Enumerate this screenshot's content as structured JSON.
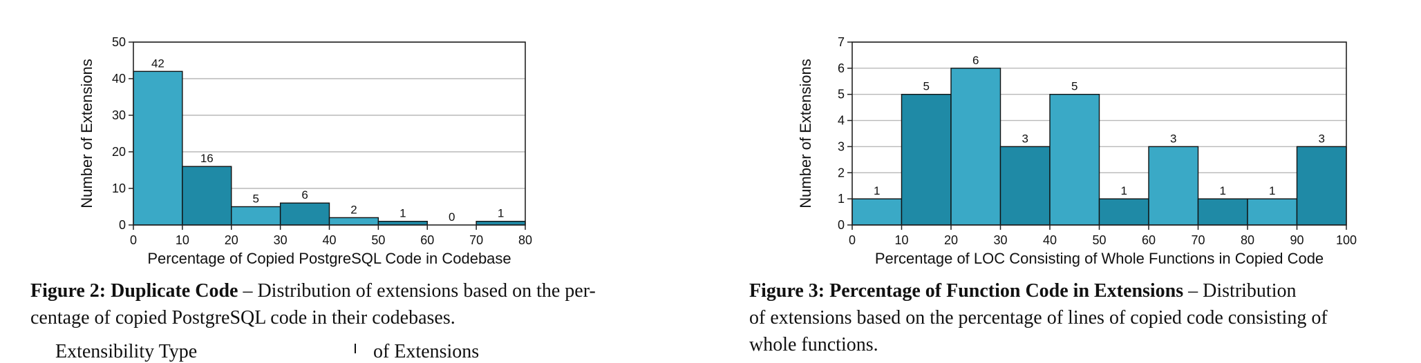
{
  "chart_data": [
    {
      "type": "bar",
      "bin_edges": [
        0,
        10,
        20,
        30,
        40,
        50,
        60,
        70,
        80
      ],
      "values": [
        42,
        16,
        5,
        6,
        2,
        1,
        0,
        1
      ],
      "xticks": [
        "0",
        "10",
        "20",
        "30",
        "40",
        "50",
        "60",
        "70",
        "80"
      ],
      "yticks": [
        "0",
        "10",
        "20",
        "30",
        "40",
        "50"
      ],
      "ylim": [
        0,
        50
      ],
      "xlabel": "Percentage of Copied PostgreSQL Code in Codebase",
      "ylabel": "Number of Extensions",
      "grid": true
    },
    {
      "type": "bar",
      "bin_edges": [
        0,
        10,
        20,
        30,
        40,
        50,
        60,
        70,
        80,
        90,
        100
      ],
      "values": [
        1,
        5,
        6,
        3,
        5,
        1,
        3,
        1,
        1,
        3
      ],
      "xticks": [
        "0",
        "10",
        "20",
        "30",
        "40",
        "50",
        "60",
        "70",
        "80",
        "90",
        "100"
      ],
      "yticks": [
        "0",
        "1",
        "2",
        "3",
        "4",
        "5",
        "6",
        "7"
      ],
      "ylim": [
        0,
        7
      ],
      "xlabel": "Percentage of LOC Consisting of Whole Functions in Copied Code",
      "ylabel": "Number of Extensions",
      "grid": true
    }
  ],
  "colors": {
    "bar_light": "#3aa9c6",
    "bar_dark": "#1f8aa6",
    "grid": "#b8b8b8",
    "axis": "#222222"
  },
  "captions": [
    {
      "figure_label": "Figure 2: Duplicate Code",
      "dash": " – ",
      "lines": [
        "Distribution of extensions based on the per-",
        "centage of copied PostgreSQL code in their codebases."
      ]
    },
    {
      "figure_label": "Figure 3: Percentage of Function Code in Extensions",
      "dash": " – ",
      "lines": [
        "Distribution",
        "of extensions based on the percentage of lines of copied code consisting of",
        "whole functions."
      ]
    }
  ],
  "below": {
    "left_fragment": "Extensibility Type",
    "right_fragment": "of Extensions"
  }
}
